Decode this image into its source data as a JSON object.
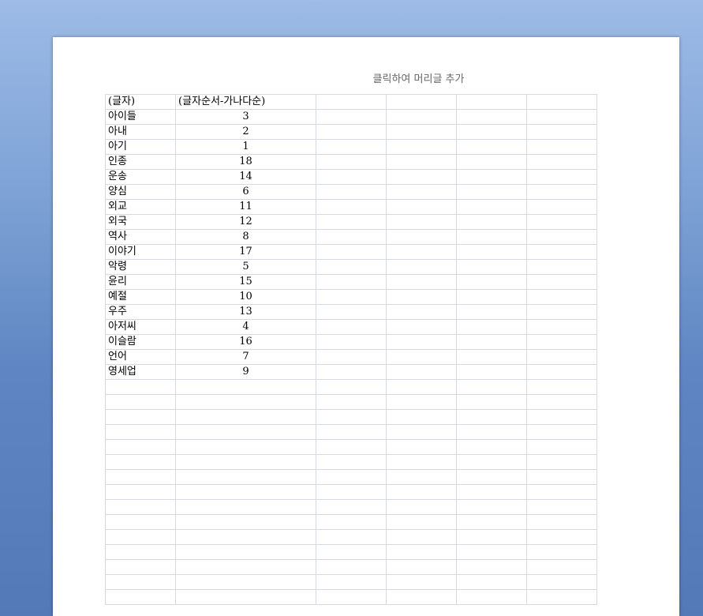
{
  "header_placeholder": "클릭하여 머리글 추가",
  "columns": [
    "(글자)",
    "(글자순서-가나다순)"
  ],
  "rows": [
    [
      "아이들",
      "3"
    ],
    [
      "아내",
      "2"
    ],
    [
      "아기",
      "1"
    ],
    [
      "인종",
      "18"
    ],
    [
      "운송",
      "14"
    ],
    [
      "양심",
      "6"
    ],
    [
      "외교",
      "11"
    ],
    [
      "외국",
      "12"
    ],
    [
      "역사",
      "8"
    ],
    [
      "이야기",
      "17"
    ],
    [
      "악령",
      "5"
    ],
    [
      "윤리",
      "15"
    ],
    [
      "예절",
      "10"
    ],
    [
      "우주",
      "13"
    ],
    [
      "아저씨",
      "4"
    ],
    [
      "이슬람",
      "16"
    ],
    [
      "언어",
      "7"
    ],
    [
      "영세업",
      "9"
    ]
  ]
}
